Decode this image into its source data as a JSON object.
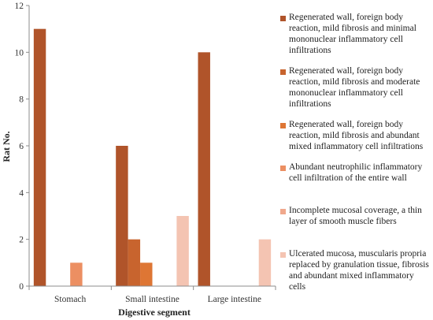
{
  "chart_data": {
    "type": "bar",
    "xlabel": "Digestive segment",
    "ylabel": "Rat No.",
    "ylim": [
      0,
      12
    ],
    "yticks": [
      "0",
      "2",
      "4",
      "6",
      "8",
      "10",
      "12"
    ],
    "grid": false,
    "legend_position": "right",
    "categories": [
      "Stomach",
      "Small intestine",
      "Large intestine"
    ],
    "series": [
      {
        "name": "Regenerated wall, foreign body reaction, mild fibrosis and minimal mononuclear inflammatory cell infiltrations",
        "color": "#b0542a",
        "values": [
          11,
          6,
          10
        ]
      },
      {
        "name": "Regenerated wall, foreign body reaction, mild fibrosis and moderate mononuclear inflammatory cell infiltrations",
        "color": "#c8642e",
        "values": [
          0,
          2,
          0
        ]
      },
      {
        "name": "Regenerated wall, foreign body reaction, mild fibrosis and abundant mixed inflammatory cell infiltrations",
        "color": "#de7634",
        "values": [
          0,
          1,
          0
        ]
      },
      {
        "name": "Abundant neutrophilic inflammatory cell infiltration of the entire wall",
        "color": "#ec8f62",
        "values": [
          1,
          0,
          0
        ]
      },
      {
        "name": "Incomplete mucosal coverage, a thin layer of smooth muscle fibers",
        "color": "#f0a88c",
        "values": [
          0,
          0,
          0
        ]
      },
      {
        "name": "Ulcerated mucosa, muscularis propria replaced by granulation tissue, fibrosis and abundant mixed inflammatory cells",
        "color": "#f4c4b2",
        "values": [
          0,
          3,
          2
        ]
      }
    ]
  }
}
